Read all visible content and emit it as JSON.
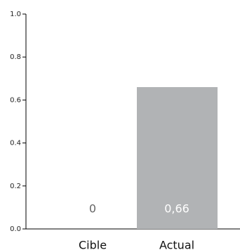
{
  "chart_data": {
    "type": "bar",
    "categories": [
      "Cible",
      "Actual"
    ],
    "values": [
      0,
      0.66
    ],
    "value_labels": [
      "0",
      "0,66"
    ],
    "color": "#b1b3b5",
    "ylim": [
      0,
      1
    ],
    "yticks": [
      {
        "value": 0,
        "label": "0.0"
      },
      0.2,
      0.4,
      0.6,
      0.8,
      {
        "value": 1,
        "label": "1.0"
      }
    ]
  }
}
